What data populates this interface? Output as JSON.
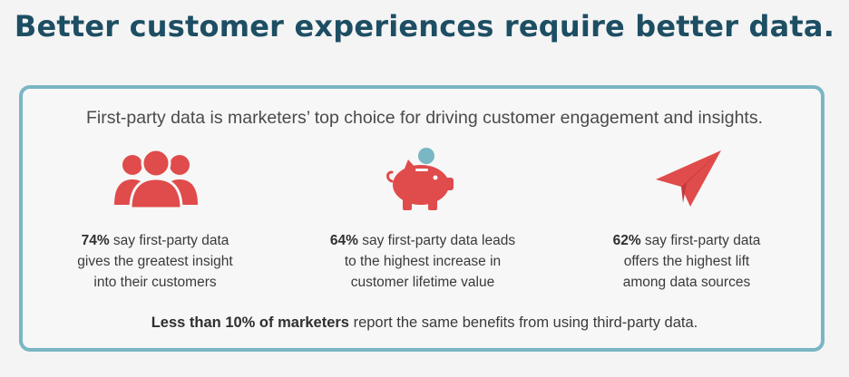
{
  "headline": "Better customer experiences require better data.",
  "subtitle": "First-party data is marketers’ top choice for driving customer engagement and insights.",
  "colors": {
    "headline": "#1d4e63",
    "card_border": "#7ab6c4",
    "icon_red": "#e04b4b",
    "coin": "#7ab6c4"
  },
  "stats": [
    {
      "icon": "people-group-icon",
      "percent": "74%",
      "text_line1": " say first-party data",
      "text_line2": "gives the greatest insight",
      "text_line3": "into their customers"
    },
    {
      "icon": "piggy-bank-icon",
      "percent": "64%",
      "text_line1": " say first-party data leads",
      "text_line2": "to the highest increase in",
      "text_line3": "customer lifetime value"
    },
    {
      "icon": "paper-plane-icon",
      "percent": "62%",
      "text_line1": " say first-party data",
      "text_line2": "offers the highest lift",
      "text_line3": "among data sources"
    }
  ],
  "footer": {
    "bold": "Less than 10% of marketers",
    "rest": " report the same benefits from using third-party data."
  }
}
